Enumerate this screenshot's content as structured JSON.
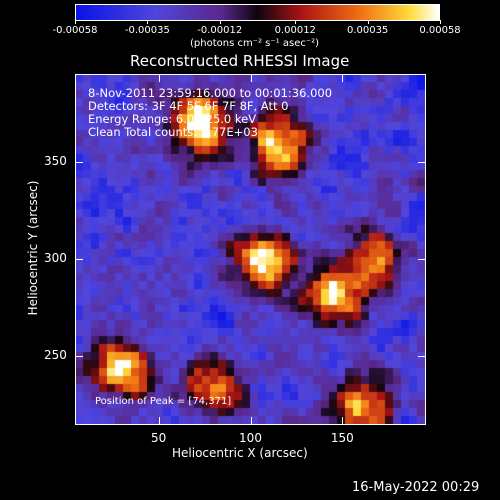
{
  "chart_data": {
    "type": "heatmap",
    "title": "Reconstructed RHESSI Image",
    "xlabel": "Heliocentric X (arcsec)",
    "ylabel": "Heliocentric Y (arcsec)",
    "xlim": [
      5,
      195
    ],
    "ylim": [
      215,
      395
    ],
    "x_ticks": [
      50,
      100,
      150
    ],
    "y_ticks": [
      250,
      300,
      350
    ],
    "colorbar": {
      "ticks": [
        "-0.00058",
        "-0.00035",
        "-0.00012",
        "0.00012",
        "0.00035",
        "0.00058"
      ],
      "tick_values": [
        -0.00058,
        -0.00035,
        -0.00012,
        0.00012,
        0.00035,
        0.00058
      ],
      "label": "(photons cm⁻² s⁻¹ asec⁻²)",
      "range": [
        -0.00058,
        0.00058
      ]
    },
    "annotations": [
      "8-Nov-2011 23:59:16.000 to 00:01:36.000",
      "Detectors: 3F 4F 5F 6F 7F 8F, Att 0",
      "Energy Range: 6.0 - 25.0 keV",
      "Clean     Total counts: 3.77E+03"
    ],
    "peak_label": "Position of Peak = [74,371]",
    "peak": [
      74,
      371
    ],
    "bright_regions": [
      {
        "x": 74,
        "y": 371,
        "value": 0.00058
      },
      {
        "x": 115,
        "y": 358,
        "value": 0.0005
      },
      {
        "x": 108,
        "y": 300,
        "value": 0.00048
      },
      {
        "x": 145,
        "y": 282,
        "value": 0.0005
      },
      {
        "x": 30,
        "y": 243,
        "value": 0.0004
      },
      {
        "x": 160,
        "y": 222,
        "value": 0.00035
      },
      {
        "x": 170,
        "y": 300,
        "value": 0.00022
      },
      {
        "x": 80,
        "y": 235,
        "value": 0.00025
      }
    ],
    "grid": false
  },
  "footer": {
    "timestamp": "16-May-2022 00:29"
  }
}
